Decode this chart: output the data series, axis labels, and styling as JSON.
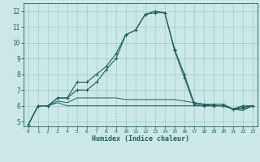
{
  "xlabel": "Humidex (Indice chaleur)",
  "xlim": [
    -0.5,
    23.5
  ],
  "ylim": [
    4.7,
    12.5
  ],
  "background_color": "#cce8e6",
  "grid_color": "#a0ccca",
  "line_color": "#1a6060",
  "x_ticks": [
    0,
    1,
    2,
    3,
    4,
    5,
    6,
    7,
    8,
    9,
    10,
    11,
    12,
    13,
    14,
    15,
    16,
    17,
    18,
    19,
    20,
    21,
    22,
    23
  ],
  "y_ticks": [
    5,
    6,
    7,
    8,
    9,
    10,
    11,
    12
  ],
  "series": [
    {
      "y": [
        4.8,
        6.0,
        6.0,
        6.5,
        6.5,
        7.5,
        7.5,
        8.0,
        8.5,
        9.3,
        10.5,
        10.8,
        11.8,
        11.9,
        11.9,
        9.6,
        8.0,
        6.2,
        6.1,
        6.1,
        6.1,
        5.8,
        6.0,
        6.0
      ],
      "marker": true
    },
    {
      "y": [
        4.8,
        6.0,
        6.0,
        6.5,
        6.5,
        7.0,
        7.0,
        7.5,
        8.3,
        9.0,
        10.5,
        10.8,
        11.8,
        12.0,
        11.9,
        9.5,
        7.8,
        6.1,
        6.0,
        6.0,
        6.0,
        5.8,
        5.9,
        6.0
      ],
      "marker": true
    },
    {
      "y": [
        4.8,
        6.0,
        6.0,
        6.3,
        6.2,
        6.5,
        6.5,
        6.5,
        6.5,
        6.5,
        6.4,
        6.4,
        6.4,
        6.4,
        6.4,
        6.4,
        6.3,
        6.2,
        6.1,
        6.0,
        6.0,
        5.8,
        5.8,
        6.0
      ],
      "marker": false
    },
    {
      "y": [
        4.8,
        6.0,
        6.0,
        6.2,
        6.0,
        6.0,
        6.0,
        6.0,
        6.0,
        6.0,
        6.0,
        6.0,
        6.0,
        6.0,
        6.0,
        6.0,
        6.0,
        6.0,
        6.0,
        6.0,
        6.0,
        5.8,
        5.7,
        6.0
      ],
      "marker": false
    }
  ]
}
